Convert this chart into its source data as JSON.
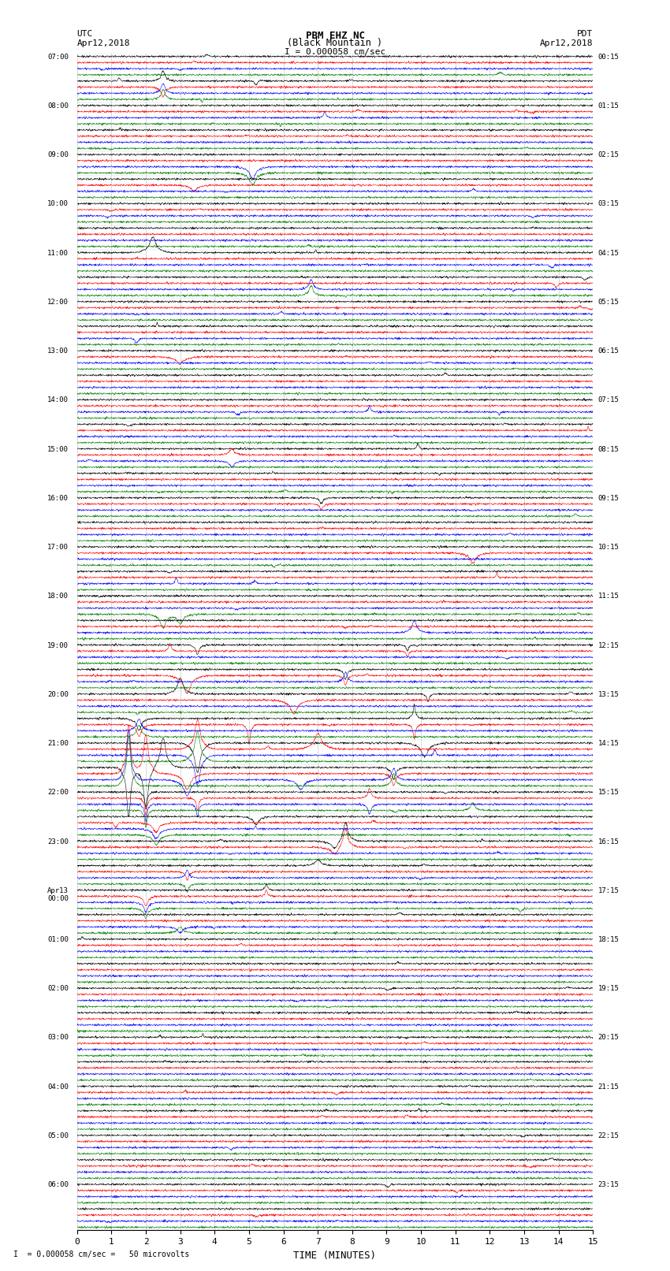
{
  "title_line1": "PBM EHZ NC",
  "title_line2": "(Black Mountain )",
  "scale_text": "I = 0.000058 cm/sec",
  "left_header_line1": "UTC",
  "left_header_line2": "Apr12,2018",
  "right_header_line1": "PDT",
  "right_header_line2": "Apr12,2018",
  "bottom_label": "TIME (MINUTES)",
  "footer_text": "= 0.000058 cm/sec =   50 microvolts",
  "xlim": [
    0,
    15
  ],
  "xticks": [
    0,
    1,
    2,
    3,
    4,
    5,
    6,
    7,
    8,
    9,
    10,
    11,
    12,
    13,
    14,
    15
  ],
  "num_groups": 48,
  "trace_colors": [
    "black",
    "red",
    "blue",
    "green"
  ],
  "bg_color": "white",
  "left_labels": [
    "07:00",
    "08:00",
    "09:00",
    "10:00",
    "11:00",
    "12:00",
    "13:00",
    "14:00",
    "15:00",
    "16:00",
    "17:00",
    "18:00",
    "19:00",
    "20:00",
    "21:00",
    "22:00",
    "23:00",
    "Apr13\n00:00",
    "01:00",
    "02:00",
    "03:00",
    "04:00",
    "05:00",
    "06:00"
  ],
  "right_labels": [
    "00:15",
    "01:15",
    "02:15",
    "03:15",
    "04:15",
    "05:15",
    "06:15",
    "07:15",
    "08:15",
    "09:15",
    "10:15",
    "11:15",
    "12:15",
    "13:15",
    "14:15",
    "15:15",
    "16:15",
    "17:15",
    "18:15",
    "19:15",
    "20:15",
    "21:15",
    "22:15",
    "23:15"
  ]
}
